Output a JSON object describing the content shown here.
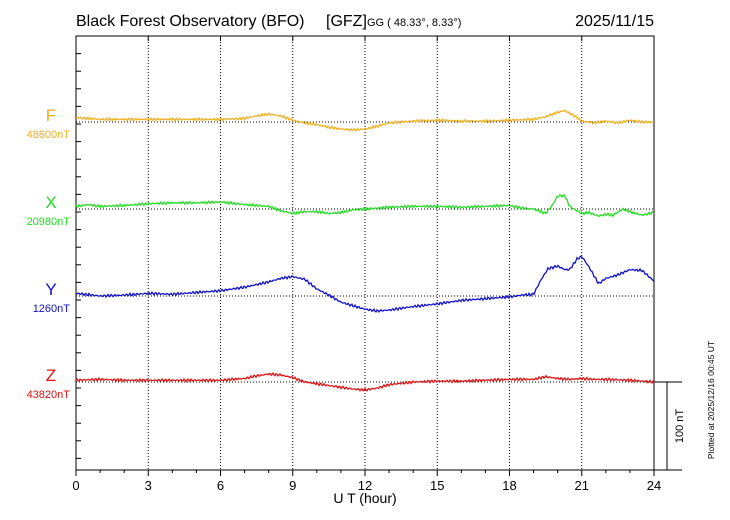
{
  "header": {
    "title": "Black Forest Observatory (BFO)",
    "institute": "[GFZ]",
    "coords": "GG ( 48.33°,   8.33°)",
    "date": "2025/11/15"
  },
  "footer": {
    "plotted_note": "Plotted at 2025/12/16 00:45 UT"
  },
  "chart_data": {
    "type": "line",
    "title": "Black Forest Observatory (BFO)",
    "xlabel": "U T (hour)",
    "xlim": [
      0,
      24
    ],
    "xticks": [
      0,
      3,
      6,
      9,
      12,
      15,
      18,
      21,
      24
    ],
    "tick_labels": [
      "0",
      "3",
      "6",
      "9",
      "12",
      "15",
      "18",
      "21",
      "24"
    ],
    "scale_bar_label": "100 nT",
    "scale_bar_nT": 100,
    "panel_span_nT": 100,
    "series": [
      {
        "name": "F",
        "baseline_label": "48600nT",
        "baseline_nT": 48600,
        "color": "#f0b020",
        "x": [
          0,
          1,
          2,
          3,
          4,
          5,
          6,
          7,
          7.5,
          8,
          8.5,
          9,
          9.5,
          10,
          10.5,
          11,
          11.5,
          12,
          12.5,
          13,
          14,
          15,
          16,
          17,
          18,
          19,
          19.5,
          20,
          20.3,
          20.7,
          21,
          21.5,
          22,
          22.5,
          23,
          23.5,
          24
        ],
        "values": [
          5,
          3,
          3,
          3,
          3,
          3,
          3,
          4,
          7,
          9,
          7,
          2,
          -1,
          -3,
          -6,
          -8,
          -9,
          -8,
          -5,
          -1,
          1,
          2,
          1,
          1,
          2,
          3,
          6,
          11,
          13,
          7,
          1,
          -1,
          1,
          -1,
          2,
          0,
          0
        ]
      },
      {
        "name": "X",
        "baseline_label": "20980nT",
        "baseline_nT": 20980,
        "color": "#22dd22",
        "x": [
          0,
          0.5,
          1,
          2,
          3,
          4,
          5,
          6,
          7,
          8,
          8.5,
          9,
          9.5,
          10,
          10.5,
          11,
          11.5,
          12,
          13,
          14,
          15,
          16,
          17,
          18,
          18.5,
          19,
          19.5,
          19.8,
          20,
          20.3,
          20.5,
          20.8,
          21,
          21.3,
          21.7,
          22,
          22.3,
          22.7,
          23,
          23.5,
          24
        ],
        "values": [
          3,
          5,
          3,
          4,
          6,
          7,
          7,
          8,
          5,
          3,
          -2,
          -5,
          -3,
          -3,
          -5,
          -4,
          -1,
          0,
          2,
          3,
          3,
          2,
          3,
          4,
          1,
          0,
          -5,
          5,
          15,
          15,
          3,
          -2,
          -5,
          -4,
          -8,
          -6,
          -7,
          0,
          -3,
          -7,
          -4
        ]
      },
      {
        "name": "Y",
        "baseline_label": "1260nT",
        "baseline_nT": 1260,
        "color": "#1010cc",
        "x": [
          0,
          1,
          2,
          3,
          4,
          5,
          6,
          7,
          8,
          8.5,
          9,
          9.5,
          10,
          10.5,
          11,
          11.5,
          12,
          12.5,
          13,
          14,
          15,
          16,
          17,
          18,
          18.5,
          19,
          19.3,
          19.6,
          20,
          20.3,
          20.5,
          20.8,
          21,
          21.3,
          21.7,
          22,
          22.5,
          23,
          23.5,
          24
        ],
        "values": [
          3,
          0,
          1,
          3,
          2,
          4,
          6,
          10,
          16,
          20,
          22,
          19,
          8,
          1,
          -7,
          -11,
          -15,
          -17,
          -16,
          -12,
          -9,
          -5,
          -3,
          -1,
          1,
          2,
          18,
          31,
          34,
          30,
          30,
          42,
          45,
          33,
          14,
          20,
          24,
          30,
          29,
          17
        ]
      },
      {
        "name": "Z",
        "baseline_label": "43820nT",
        "baseline_nT": 43820,
        "color": "#e01010",
        "x": [
          0,
          1,
          2,
          3,
          4,
          5,
          6,
          7,
          7.5,
          8,
          8.5,
          9,
          9.5,
          10,
          10.5,
          11,
          11.5,
          12,
          12.5,
          13,
          14,
          15,
          16,
          17,
          18,
          19,
          19.5,
          20,
          20.5,
          21,
          21.5,
          22,
          23,
          24
        ],
        "values": [
          2,
          3,
          2,
          2,
          2,
          2,
          2,
          4,
          7,
          9,
          8,
          5,
          0,
          -2,
          -4,
          -6,
          -8,
          -9,
          -7,
          -3,
          0,
          1,
          1,
          2,
          3,
          3,
          6,
          4,
          3,
          4,
          3,
          3,
          2,
          0
        ]
      }
    ]
  }
}
